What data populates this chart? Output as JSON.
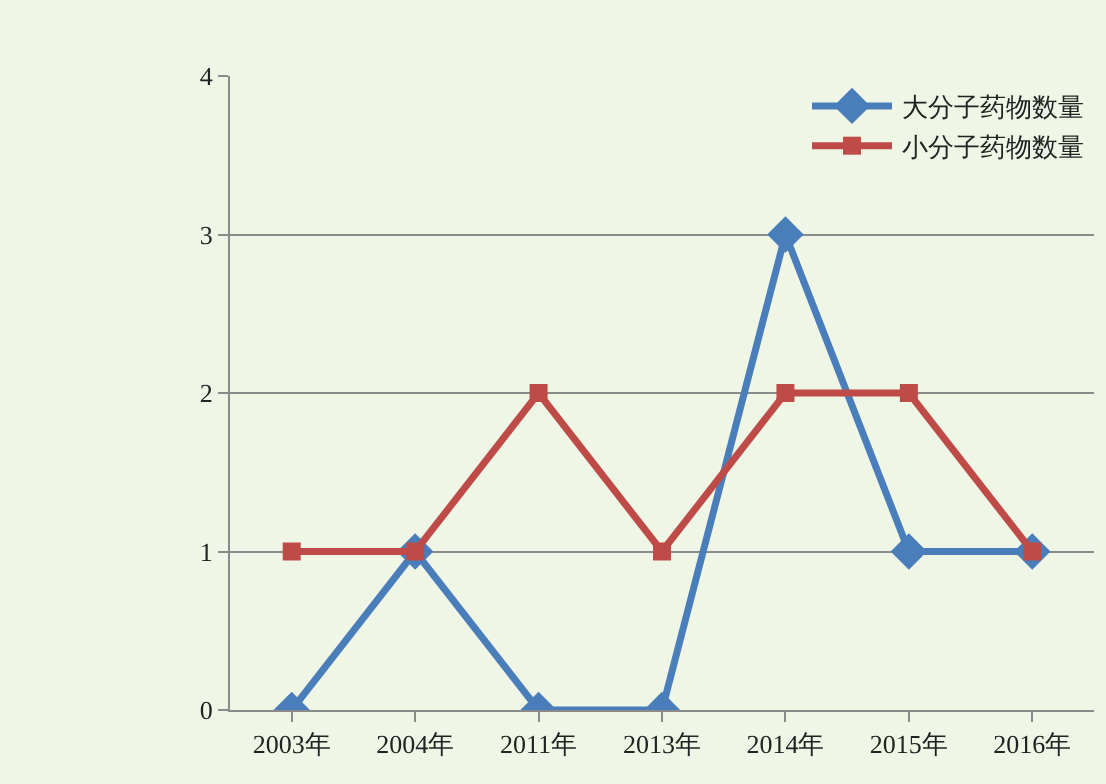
{
  "chart_data": {
    "type": "line",
    "categories": [
      "2003年",
      "2004年",
      "2011年",
      "2013年",
      "2014年",
      "2015年",
      "2016年"
    ],
    "series": [
      {
        "name": "大分子药物数量",
        "color": "#4a7ebb",
        "values": [
          0,
          1,
          0,
          0,
          3,
          1,
          1
        ],
        "marker": "diamond"
      },
      {
        "name": "小分子药物数量",
        "color": "#be4b48",
        "values": [
          1,
          1,
          2,
          1,
          2,
          2,
          1
        ],
        "marker": "square"
      }
    ],
    "ylim": [
      0,
      4
    ],
    "yticks": [
      0,
      1,
      2,
      3,
      4
    ],
    "grid": "y",
    "legend": "top right",
    "line_style": "solid"
  }
}
